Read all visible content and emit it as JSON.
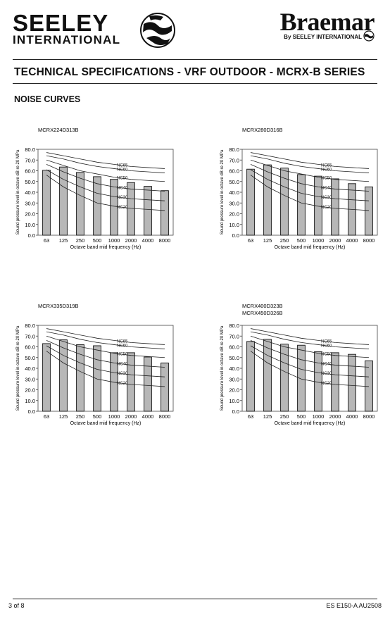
{
  "header": {
    "seeley_line1": "SEELEY",
    "seeley_line2": "INTERNATIONAL",
    "braemar": "Braemar",
    "braemar_sub": "By SEELEY INTERNATIONAL"
  },
  "page_title": "TECHNICAL SPECIFICATIONS - VRF OUTDOOR - MCRX-B SERIES",
  "section_title": "NOISE CURVES",
  "footer": {
    "page": "3  of 8",
    "doc": "ES E150-A AU2508"
  },
  "chart_data": [
    {
      "type": "bar",
      "title": "MCRX224D313B",
      "xlabel": "Octave band mid frequency (Hz)",
      "ylabel": "Sound pressure level in octave dB re 20 MPa",
      "categories": [
        "63",
        "125",
        "250",
        "500",
        "1000",
        "2000",
        "4000",
        "8000"
      ],
      "values": [
        60.5,
        63.5,
        58.5,
        54.5,
        52,
        49,
        45.5,
        41.5
      ],
      "ylim": [
        0,
        80
      ],
      "yticks": [
        "0.0",
        "10.0",
        "20.0",
        "30.0",
        "40.0",
        "50.0",
        "60.0",
        "70.0",
        "80.0"
      ],
      "nc_curves": [
        {
          "name": "NC65",
          "values": [
            77,
            74,
            71,
            68,
            66,
            64,
            63,
            62
          ]
        },
        {
          "name": "NC60",
          "values": [
            74,
            71,
            67,
            64,
            62,
            60,
            59,
            58
          ]
        },
        {
          "name": "NC50",
          "values": [
            70,
            65,
            60,
            57,
            54,
            52,
            51,
            50
          ]
        },
        {
          "name": "NC40",
          "values": [
            66,
            59,
            53,
            48,
            45,
            43,
            42,
            41
          ]
        },
        {
          "name": "NC30",
          "values": [
            61,
            52,
            45,
            39,
            36,
            34,
            33,
            32
          ]
        },
        {
          "name": "NC20",
          "values": [
            56,
            45,
            37,
            30,
            27,
            25,
            24,
            23
          ]
        }
      ]
    },
    {
      "type": "bar",
      "title": "MCRX280D316B",
      "xlabel": "Octave band mid frequency (Hz)",
      "ylabel": "Sound pressure level in octave dB re 20 MPa",
      "categories": [
        "63",
        "125",
        "250",
        "500",
        "1000",
        "2000",
        "4000",
        "8000"
      ],
      "values": [
        61.5,
        65.5,
        62.5,
        56.5,
        55,
        52.5,
        48,
        45
      ],
      "ylim": [
        0,
        80
      ],
      "yticks": [
        "0.0",
        "10.0",
        "20.0",
        "30.0",
        "40.0",
        "50.0",
        "60.0",
        "70.0",
        "80.0"
      ],
      "nc_curves": [
        {
          "name": "NC65",
          "values": [
            77,
            74,
            71,
            68,
            66,
            64,
            63,
            62
          ]
        },
        {
          "name": "NC60",
          "values": [
            74,
            71,
            67,
            64,
            62,
            60,
            59,
            58
          ]
        },
        {
          "name": "NC50",
          "values": [
            70,
            65,
            60,
            57,
            54,
            52,
            51,
            50
          ]
        },
        {
          "name": "NC40",
          "values": [
            66,
            59,
            53,
            48,
            45,
            43,
            42,
            41
          ]
        },
        {
          "name": "NC30",
          "values": [
            61,
            52,
            45,
            39,
            36,
            34,
            33,
            32
          ]
        },
        {
          "name": "NC20",
          "values": [
            56,
            45,
            37,
            30,
            27,
            25,
            24,
            23
          ]
        }
      ]
    },
    {
      "type": "bar",
      "title": "MCRX335D319B",
      "xlabel": "Octave band mid frequency (Hz)",
      "ylabel": "Sound pressure level in octave dB re 20 MPa",
      "categories": [
        "63",
        "125",
        "250",
        "500",
        "1000",
        "2000",
        "4000",
        "8000"
      ],
      "values": [
        63,
        66.5,
        62,
        61,
        54.5,
        54.5,
        50.5,
        45
      ],
      "ylim": [
        0,
        80
      ],
      "yticks": [
        "0.0",
        "10.0",
        "20.0",
        "30.0",
        "40.0",
        "50.0",
        "60.0",
        "70.0",
        "80.0"
      ],
      "nc_curves": [
        {
          "name": "NC65",
          "values": [
            77,
            74,
            71,
            68,
            66,
            64,
            63,
            62
          ]
        },
        {
          "name": "NC60",
          "values": [
            74,
            71,
            67,
            64,
            62,
            60,
            59,
            58
          ]
        },
        {
          "name": "NC50",
          "values": [
            70,
            65,
            60,
            57,
            54,
            52,
            51,
            50
          ]
        },
        {
          "name": "NC40",
          "values": [
            66,
            59,
            53,
            48,
            45,
            43,
            42,
            41
          ]
        },
        {
          "name": "NC30",
          "values": [
            61,
            52,
            45,
            39,
            36,
            34,
            33,
            32
          ]
        },
        {
          "name": "NC20",
          "values": [
            56,
            45,
            37,
            30,
            27,
            25,
            24,
            23
          ]
        }
      ]
    },
    {
      "type": "bar",
      "title": "MCRX400D323B",
      "title2": "MCRX450D326B",
      "xlabel": "Octave band mid frequency (Hz)",
      "ylabel": "Sound pressure level in octave dB re 20 MPa",
      "categories": [
        "63",
        "125",
        "250",
        "500",
        "1000",
        "2000",
        "4000",
        "8000"
      ],
      "values": [
        65,
        67,
        62.5,
        61.5,
        55.5,
        54.5,
        53,
        47
      ],
      "ylim": [
        0,
        80
      ],
      "yticks": [
        "0.0",
        "10.0",
        "20.0",
        "30.0",
        "40.0",
        "50.0",
        "60.0",
        "70.0",
        "80.0"
      ],
      "nc_curves": [
        {
          "name": "NC65",
          "values": [
            77,
            74,
            71,
            68,
            66,
            64,
            63,
            62
          ]
        },
        {
          "name": "NC60",
          "values": [
            74,
            71,
            67,
            64,
            62,
            60,
            59,
            58
          ]
        },
        {
          "name": "NC50",
          "values": [
            70,
            65,
            60,
            57,
            54,
            52,
            51,
            50
          ]
        },
        {
          "name": "NC40",
          "values": [
            66,
            59,
            53,
            48,
            45,
            43,
            42,
            41
          ]
        },
        {
          "name": "NC30",
          "values": [
            61,
            52,
            45,
            39,
            36,
            34,
            33,
            32
          ]
        },
        {
          "name": "NC20",
          "values": [
            56,
            45,
            37,
            30,
            27,
            25,
            24,
            23
          ]
        }
      ]
    }
  ]
}
